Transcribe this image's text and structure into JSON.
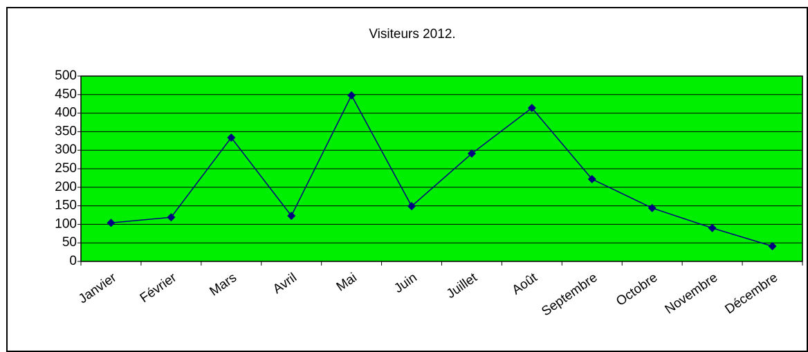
{
  "chart_data": {
    "type": "line",
    "title": "Visiteurs 2012.",
    "categories": [
      "Janvier",
      "Février",
      "Mars",
      "Avril",
      "Mai",
      "Juin",
      "Juillet",
      "Août",
      "Septembre",
      "Octobre",
      "Novembre",
      "Décembre"
    ],
    "series": [
      {
        "name": "Visiteurs",
        "color": "#000080",
        "values": [
          104,
          119,
          334,
          123,
          448,
          149,
          291,
          414,
          222,
          144,
          90,
          41
        ]
      }
    ],
    "ylim": [
      0,
      500
    ],
    "yticks": [
      0,
      50,
      100,
      150,
      200,
      250,
      300,
      350,
      400,
      450,
      500
    ],
    "grid": true,
    "plot_background": "#00ee00"
  }
}
